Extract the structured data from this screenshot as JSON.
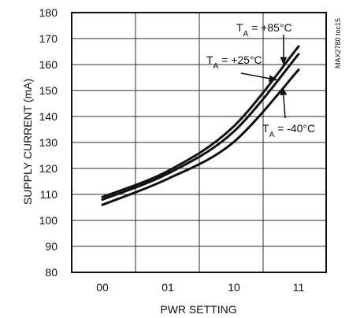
{
  "chart_data": {
    "type": "line",
    "title": "",
    "xlabel": "PWR SETTING",
    "ylabel": "SUPPLY CURRENT (mA)",
    "categories": [
      "00",
      "01",
      "10",
      "11"
    ],
    "ylim": [
      80,
      180
    ],
    "yticks": [
      80,
      90,
      100,
      110,
      120,
      130,
      140,
      150,
      160,
      170,
      180
    ],
    "grid": true,
    "watermark": "MAX2780 toc15",
    "series": [
      {
        "name": "TA = +85°C",
        "label_main": "T",
        "label_sub": "A",
        "label_suffix": " = +85°C",
        "x": [
          0,
          1,
          2,
          3
        ],
        "values": [
          109,
          119,
          136,
          167
        ]
      },
      {
        "name": "TA = +25°C",
        "label_main": "T",
        "label_sub": "A",
        "label_suffix": " = +25°C",
        "x": [
          0,
          1,
          2,
          3
        ],
        "values": [
          108,
          118,
          134,
          164
        ]
      },
      {
        "name": "TA = -40°C",
        "label_main": "T",
        "label_sub": "A",
        "label_suffix": " = -40°C",
        "x": [
          0,
          1,
          2,
          3
        ],
        "values": [
          106,
          116,
          130,
          158
        ]
      }
    ]
  }
}
